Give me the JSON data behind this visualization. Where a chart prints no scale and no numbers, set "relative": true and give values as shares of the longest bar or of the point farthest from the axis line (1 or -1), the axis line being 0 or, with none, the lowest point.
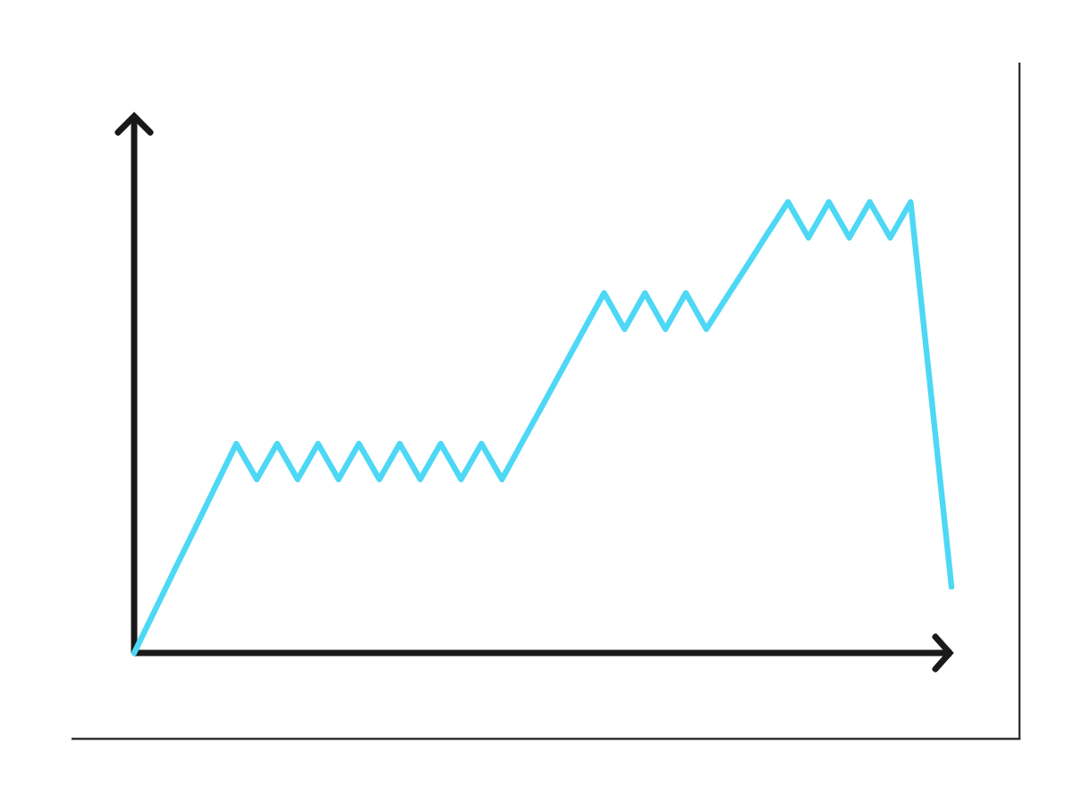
{
  "chart_data": {
    "type": "line",
    "relative": true,
    "marker": "none",
    "line_style": "solid",
    "categories": [
      null,
      null,
      null,
      null,
      null,
      null,
      null,
      null,
      null,
      null,
      null,
      null,
      null,
      null,
      null,
      null,
      null,
      null,
      null,
      null,
      null,
      null,
      null,
      null,
      null,
      null,
      null,
      null,
      null,
      null,
      null,
      null,
      null,
      null,
      null,
      null,
      null,
      null,
      null,
      null,
      null
    ],
    "series": [
      {
        "color": "#4dd8f5",
        "values": [
          0,
          0.093,
          0.186,
          0.278,
          0.371,
          0.464,
          0.385,
          0.464,
          0.385,
          0.464,
          0.385,
          0.464,
          0.385,
          0.464,
          0.385,
          0.464,
          0.385,
          0.464,
          0.385,
          0.468,
          0.55,
          0.633,
          0.716,
          0.798,
          0.718,
          0.798,
          0.718,
          0.798,
          0.718,
          0.789,
          0.859,
          0.93,
          1,
          0.921,
          1,
          0.921,
          1,
          0.921,
          1,
          0.574,
          0.147
        ]
      }
    ]
  }
}
